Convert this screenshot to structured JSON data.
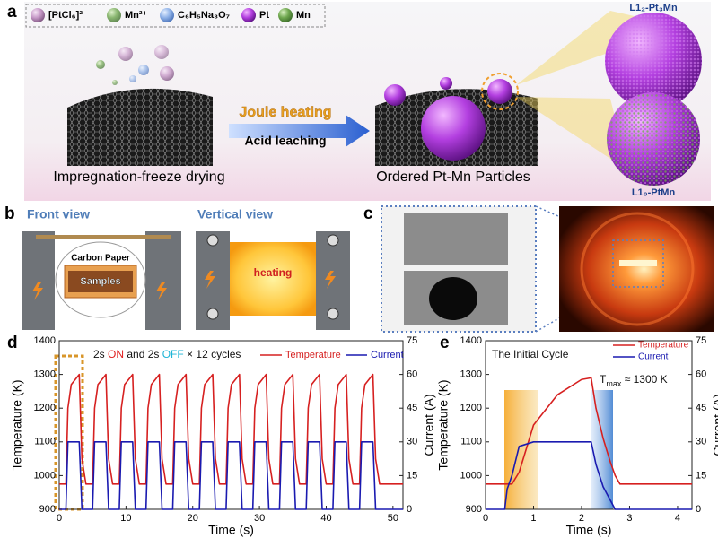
{
  "panels": {
    "a": {
      "label": "a",
      "legend": [
        "[PtCl₆]²⁻",
        "Mn²⁺",
        "C₆H₅Na₃O₇",
        "Pt",
        "Mn"
      ],
      "step1": "Impregnation-freeze drying",
      "arrow_top": "Joule heating",
      "arrow_bottom": "Acid leaching",
      "step2": "Ordered Pt-Mn Particles",
      "phase_top": "L1₂-Pt₃Mn",
      "phase_bottom": "L1₀-PtMn"
    },
    "b": {
      "label": "b",
      "front": "Front view",
      "vertical": "Vertical view",
      "carbon": "Carbon Paper",
      "samples": "Samples",
      "heating": "heating"
    },
    "c": {
      "label": "c"
    }
  },
  "chart_data": [
    {
      "type": "line",
      "label": "d",
      "xlabel": "Time (s)",
      "ylabel": "Temperature (K)",
      "y2label": "Current (A)",
      "xlim": [
        0,
        51.5
      ],
      "xticks": [
        0,
        10,
        20,
        30,
        40,
        50
      ],
      "ylim": [
        900,
        1400
      ],
      "yticks": [
        900,
        1000,
        1100,
        1200,
        1300,
        1400
      ],
      "y2lim": [
        0,
        75
      ],
      "y2ticks": [
        0,
        15,
        30,
        45,
        60,
        75
      ],
      "legend": "top-right",
      "annotations": [
        {
          "parts": [
            {
              "text": "2s ",
              "color": "#111111"
            },
            {
              "text": "ON",
              "color": "#e02020"
            },
            {
              "text": " and 2s ",
              "color": "#111111"
            },
            {
              "text": "OFF",
              "color": "#1fb5d6"
            },
            {
              "text": " × 12 cycles",
              "color": "#111111"
            }
          ]
        }
      ],
      "x": [
        0,
        1,
        1.3,
        1.8,
        3,
        3.4,
        4,
        5,
        5.3,
        5.8,
        7,
        7.4,
        8,
        9,
        9.3,
        9.8,
        11,
        11.4,
        12,
        13,
        13.3,
        13.8,
        15,
        15.4,
        16,
        17,
        17.3,
        17.8,
        19,
        19.4,
        20,
        21,
        21.3,
        21.8,
        23,
        23.4,
        24,
        25,
        25.3,
        25.8,
        27,
        27.4,
        28,
        29,
        29.3,
        29.8,
        31,
        31.4,
        32,
        33,
        33.3,
        33.8,
        35,
        35.4,
        36,
        37,
        37.3,
        37.8,
        39,
        39.4,
        40,
        41,
        41.3,
        41.8,
        43,
        43.4,
        44,
        45,
        45.3,
        45.8,
        47,
        47.4,
        48,
        51.5
      ],
      "series": [
        {
          "name": "Temperature",
          "color": "#d62020",
          "values": [
            975,
            975,
            1200,
            1270,
            1300,
            1050,
            975,
            975,
            1200,
            1270,
            1300,
            1050,
            975,
            975,
            1200,
            1270,
            1300,
            1050,
            975,
            975,
            1200,
            1270,
            1300,
            1050,
            975,
            975,
            1200,
            1270,
            1300,
            1050,
            975,
            975,
            1200,
            1270,
            1300,
            1050,
            975,
            975,
            1200,
            1270,
            1300,
            1050,
            975,
            975,
            1200,
            1270,
            1300,
            1050,
            975,
            975,
            1200,
            1270,
            1300,
            1050,
            975,
            975,
            1200,
            1270,
            1300,
            1050,
            975,
            975,
            1200,
            1270,
            1300,
            1050,
            975,
            975,
            1200,
            1270,
            1300,
            1050,
            975,
            975
          ]
        },
        {
          "name": "Current",
          "color": "#1a1ab0",
          "axis": "y2",
          "values": [
            0,
            0,
            30,
            30,
            30,
            0,
            0,
            0,
            30,
            30,
            30,
            0,
            0,
            0,
            30,
            30,
            30,
            0,
            0,
            0,
            30,
            30,
            30,
            0,
            0,
            0,
            30,
            30,
            30,
            0,
            0,
            0,
            30,
            30,
            30,
            0,
            0,
            0,
            30,
            30,
            30,
            0,
            0,
            0,
            30,
            30,
            30,
            0,
            0,
            0,
            30,
            30,
            30,
            0,
            0,
            0,
            30,
            30,
            30,
            0,
            0,
            0,
            30,
            30,
            30,
            0,
            0,
            0,
            30,
            30,
            30,
            0,
            0,
            0
          ]
        }
      ]
    },
    {
      "type": "line",
      "label": "e",
      "xlabel": "Time (s)",
      "ylabel": "Temperature (K)",
      "y2label": "Current (A)",
      "xlim": [
        0,
        4.3
      ],
      "xticks": [
        0,
        1,
        2,
        3,
        4
      ],
      "ylim": [
        900,
        1400
      ],
      "yticks": [
        900,
        1000,
        1100,
        1200,
        1300,
        1400
      ],
      "y2lim": [
        0,
        75
      ],
      "y2ticks": [
        0,
        15,
        30,
        45,
        60,
        75
      ],
      "legend": "top-right",
      "annotations": [
        {
          "parts": [
            {
              "text": "The Initial Cycle"
            }
          ]
        },
        {
          "parts": [
            {
              "text": "T"
            },
            {
              "text": "max",
              "sub": true
            },
            {
              "text": " ≈ 1300 K"
            }
          ]
        }
      ],
      "x": [
        0,
        0.4,
        0.45,
        0.55,
        0.7,
        1.0,
        1.5,
        2.0,
        2.2,
        2.3,
        2.45,
        2.6,
        2.7,
        2.8,
        4.3
      ],
      "series": [
        {
          "name": "Temperature",
          "color": "#d62020",
          "values": [
            975,
            975,
            975,
            975,
            1010,
            1150,
            1240,
            1285,
            1290,
            1200,
            1110,
            1040,
            1000,
            975,
            975
          ]
        },
        {
          "name": "Current",
          "color": "#1a1ab0",
          "axis": "y2",
          "values": [
            0,
            0,
            9,
            15,
            28,
            30,
            30,
            30,
            30,
            20,
            10,
            4,
            0,
            0,
            0
          ]
        }
      ]
    }
  ]
}
